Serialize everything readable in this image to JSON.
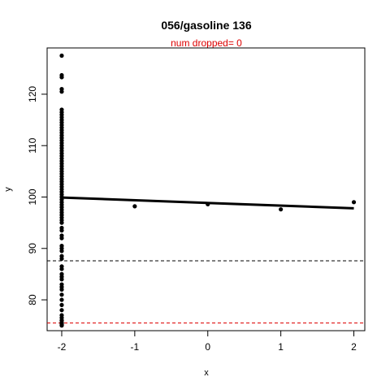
{
  "chart_data": {
    "type": "scatter",
    "title": "056/gasoline 136",
    "subtitle": "num dropped= 0",
    "xlabel": "x",
    "ylabel": "y",
    "xlim": [
      -2.2,
      2.15
    ],
    "ylim": [
      74,
      129
    ],
    "xticks": [
      -2,
      -1,
      0,
      1,
      2
    ],
    "yticks": [
      80,
      90,
      100,
      110,
      120
    ],
    "grid": false,
    "points": {
      "x": [
        -2,
        -2,
        -2,
        -2,
        -2,
        -2,
        -2,
        -2,
        -2,
        -2,
        -2,
        -2,
        -2,
        -2,
        -2,
        -2,
        -2,
        -2,
        -2,
        -2,
        -2,
        -2,
        -2,
        -2,
        -2,
        -2,
        -2,
        -2,
        -2,
        -2,
        -2,
        -2,
        -2,
        -2,
        -2,
        -2,
        -2,
        -2,
        -2,
        -2,
        -2,
        -2,
        -2,
        -2,
        -2,
        -2,
        -2,
        -2,
        -2,
        -2,
        -2,
        -2,
        -2,
        -2,
        -2,
        -2,
        -2,
        -2,
        -2,
        -2,
        -2,
        -2,
        -2,
        -2,
        -2,
        -2,
        -2,
        -2,
        -2,
        -2,
        -2,
        -2,
        -2,
        -2,
        -2,
        -2,
        -2,
        -2,
        -2,
        -1,
        0,
        1,
        2
      ],
      "y": [
        127.5,
        123.7,
        123.3,
        121,
        120.5,
        117,
        116.5,
        116,
        115.5,
        115,
        114.5,
        114,
        113.5,
        113,
        112.5,
        112,
        111.5,
        111,
        110.5,
        110,
        109.5,
        109,
        108.5,
        108,
        107.5,
        107,
        106.5,
        106,
        105.5,
        105,
        104.5,
        104,
        103.5,
        103,
        102.5,
        102,
        101.5,
        101,
        100.5,
        100,
        99.5,
        99,
        98.5,
        98,
        97.5,
        97,
        96.5,
        96,
        95.5,
        95,
        94,
        93.5,
        92.5,
        92,
        90.5,
        90,
        89.5,
        88.5,
        88,
        86.5,
        86,
        85,
        84.5,
        84,
        83,
        82.5,
        82,
        81,
        80,
        79,
        78,
        77,
        76.5,
        76,
        75.5,
        75.2,
        75,
        75.5,
        76,
        98.2,
        98.6,
        97.6,
        99.0
      ]
    },
    "fit_line": {
      "x": [
        -2,
        2
      ],
      "y": [
        99.9,
        97.8
      ]
    },
    "hlines": [
      {
        "y": 87.6,
        "color": "#000000",
        "style": "dashed"
      },
      {
        "y": 75.5,
        "color": "#dd0000",
        "style": "dashed"
      }
    ],
    "colors": {
      "points": "#000000",
      "subtitle": "#dd0000",
      "axis": "#000000"
    }
  }
}
